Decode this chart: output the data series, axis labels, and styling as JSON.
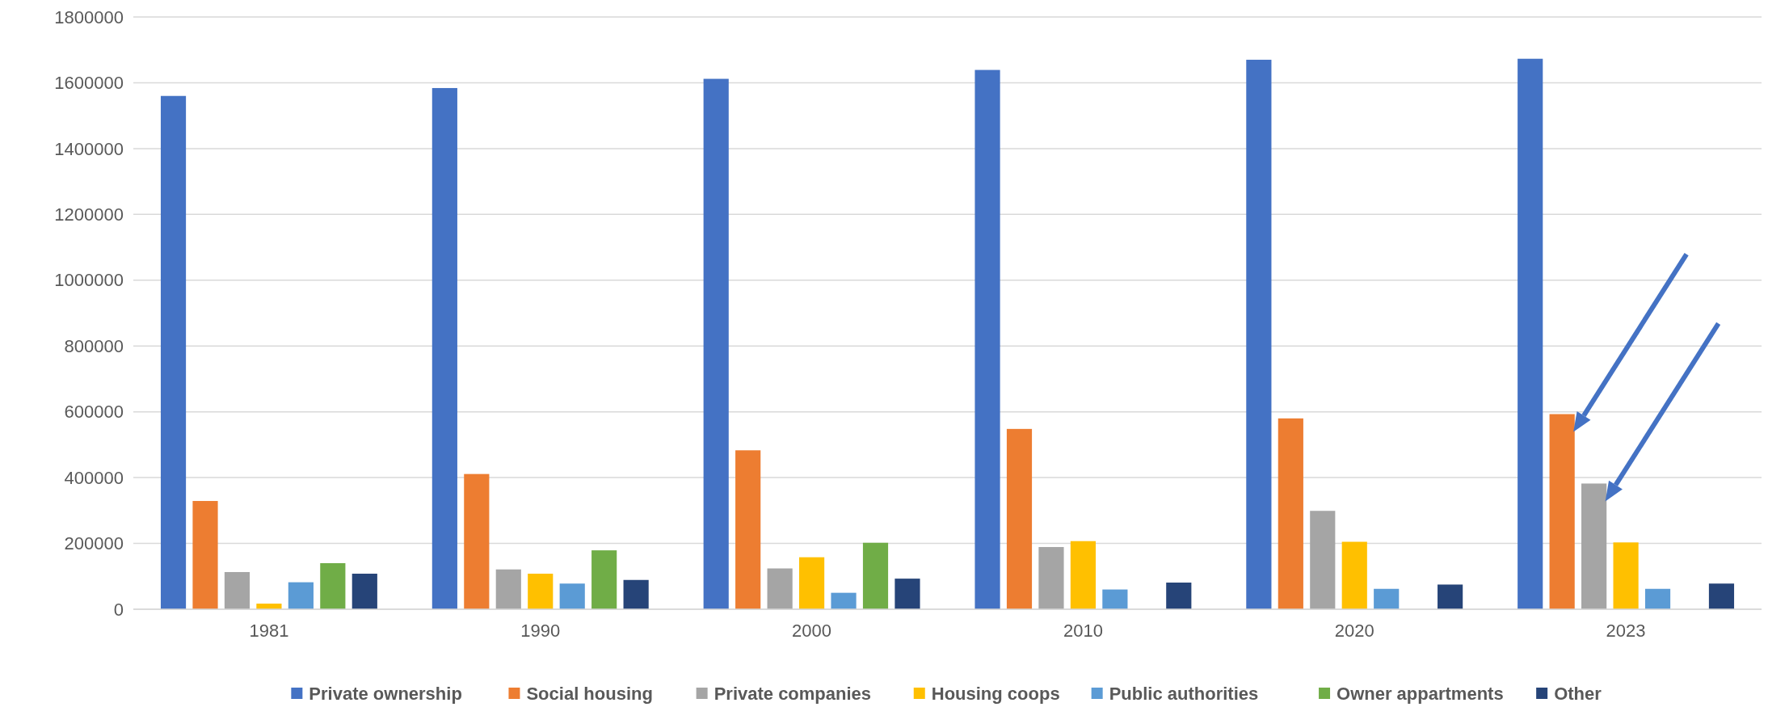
{
  "chart_data": {
    "type": "bar",
    "categories": [
      "1981",
      "1990",
      "2000",
      "2010",
      "2020",
      "2023"
    ],
    "series": [
      {
        "name": "Private ownership",
        "color": "#4472c4",
        "values": [
          1560000,
          1584000,
          1612000,
          1639000,
          1670000,
          1673000
        ]
      },
      {
        "name": "Social housing",
        "color": "#ed7d31",
        "values": [
          329000,
          411000,
          483000,
          548000,
          580000,
          593000
        ]
      },
      {
        "name": "Private companies",
        "color": "#a5a5a5",
        "values": [
          113000,
          121000,
          124000,
          189000,
          299000,
          382000
        ]
      },
      {
        "name": "Housing coops",
        "color": "#ffc000",
        "values": [
          17000,
          108000,
          158000,
          207000,
          205000,
          203000
        ]
      },
      {
        "name": "Public authorities",
        "color": "#5b9bd5",
        "values": [
          82000,
          78000,
          50000,
          60000,
          62000,
          62000
        ]
      },
      {
        "name": "Owner appartments",
        "color": "#70ad47",
        "values": [
          140000,
          179000,
          202000,
          null,
          null,
          null
        ]
      },
      {
        "name": "Other",
        "color": "#264478",
        "values": [
          108000,
          89000,
          93000,
          81000,
          75000,
          78000
        ]
      }
    ],
    "ylim": [
      0,
      1800000
    ],
    "yticks": [
      0,
      200000,
      400000,
      600000,
      800000,
      1000000,
      1200000,
      1400000,
      1600000,
      1800000
    ],
    "grid": "y",
    "legend": "bottom"
  }
}
